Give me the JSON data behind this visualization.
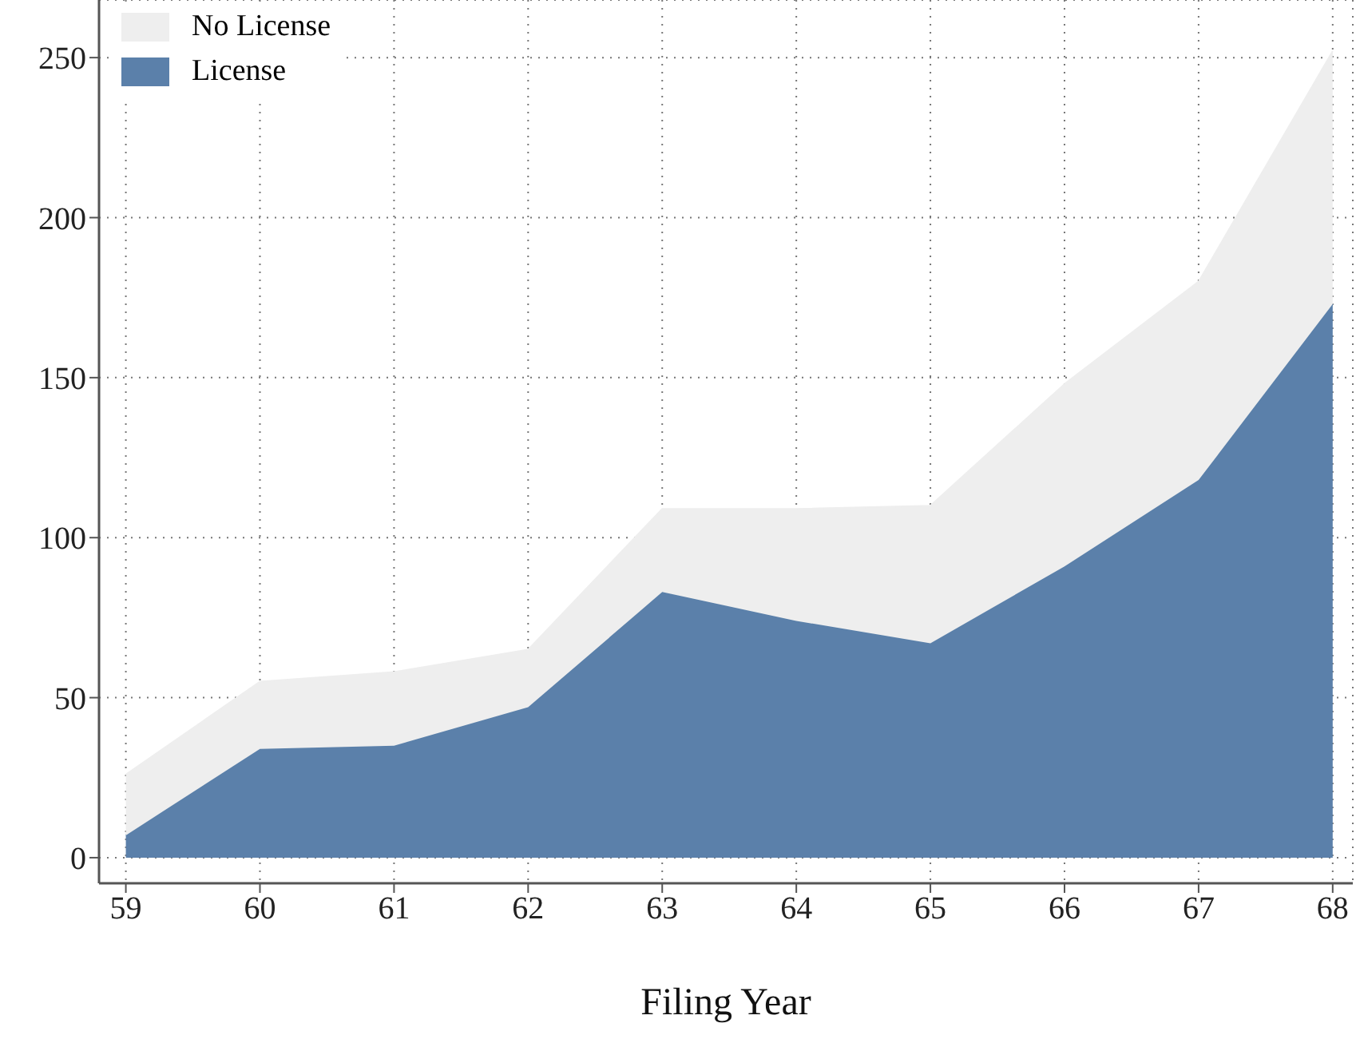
{
  "chart_data": {
    "type": "area",
    "xlabel": "Filing Year",
    "x": [
      59,
      60,
      61,
      62,
      63,
      64,
      65,
      66,
      67,
      68
    ],
    "stacked": true,
    "series": [
      {
        "name": "License",
        "color": "#5b80aa",
        "values": [
          7,
          34,
          35,
          47,
          83,
          74,
          67,
          91,
          118,
          173
        ]
      },
      {
        "name": "No License",
        "color": "#eeeeee",
        "values": [
          19,
          21,
          23,
          18,
          26,
          35,
          43,
          57,
          62,
          79
        ]
      }
    ],
    "xlim": [
      58.8,
      68.15
    ],
    "xticks": [
      59,
      60,
      61,
      62,
      63,
      64,
      65,
      66,
      67,
      68
    ],
    "ylim": [
      -8,
      268
    ],
    "yticks": [
      0,
      50,
      100,
      150,
      200,
      250
    ],
    "grid": true,
    "legend": "top left"
  }
}
